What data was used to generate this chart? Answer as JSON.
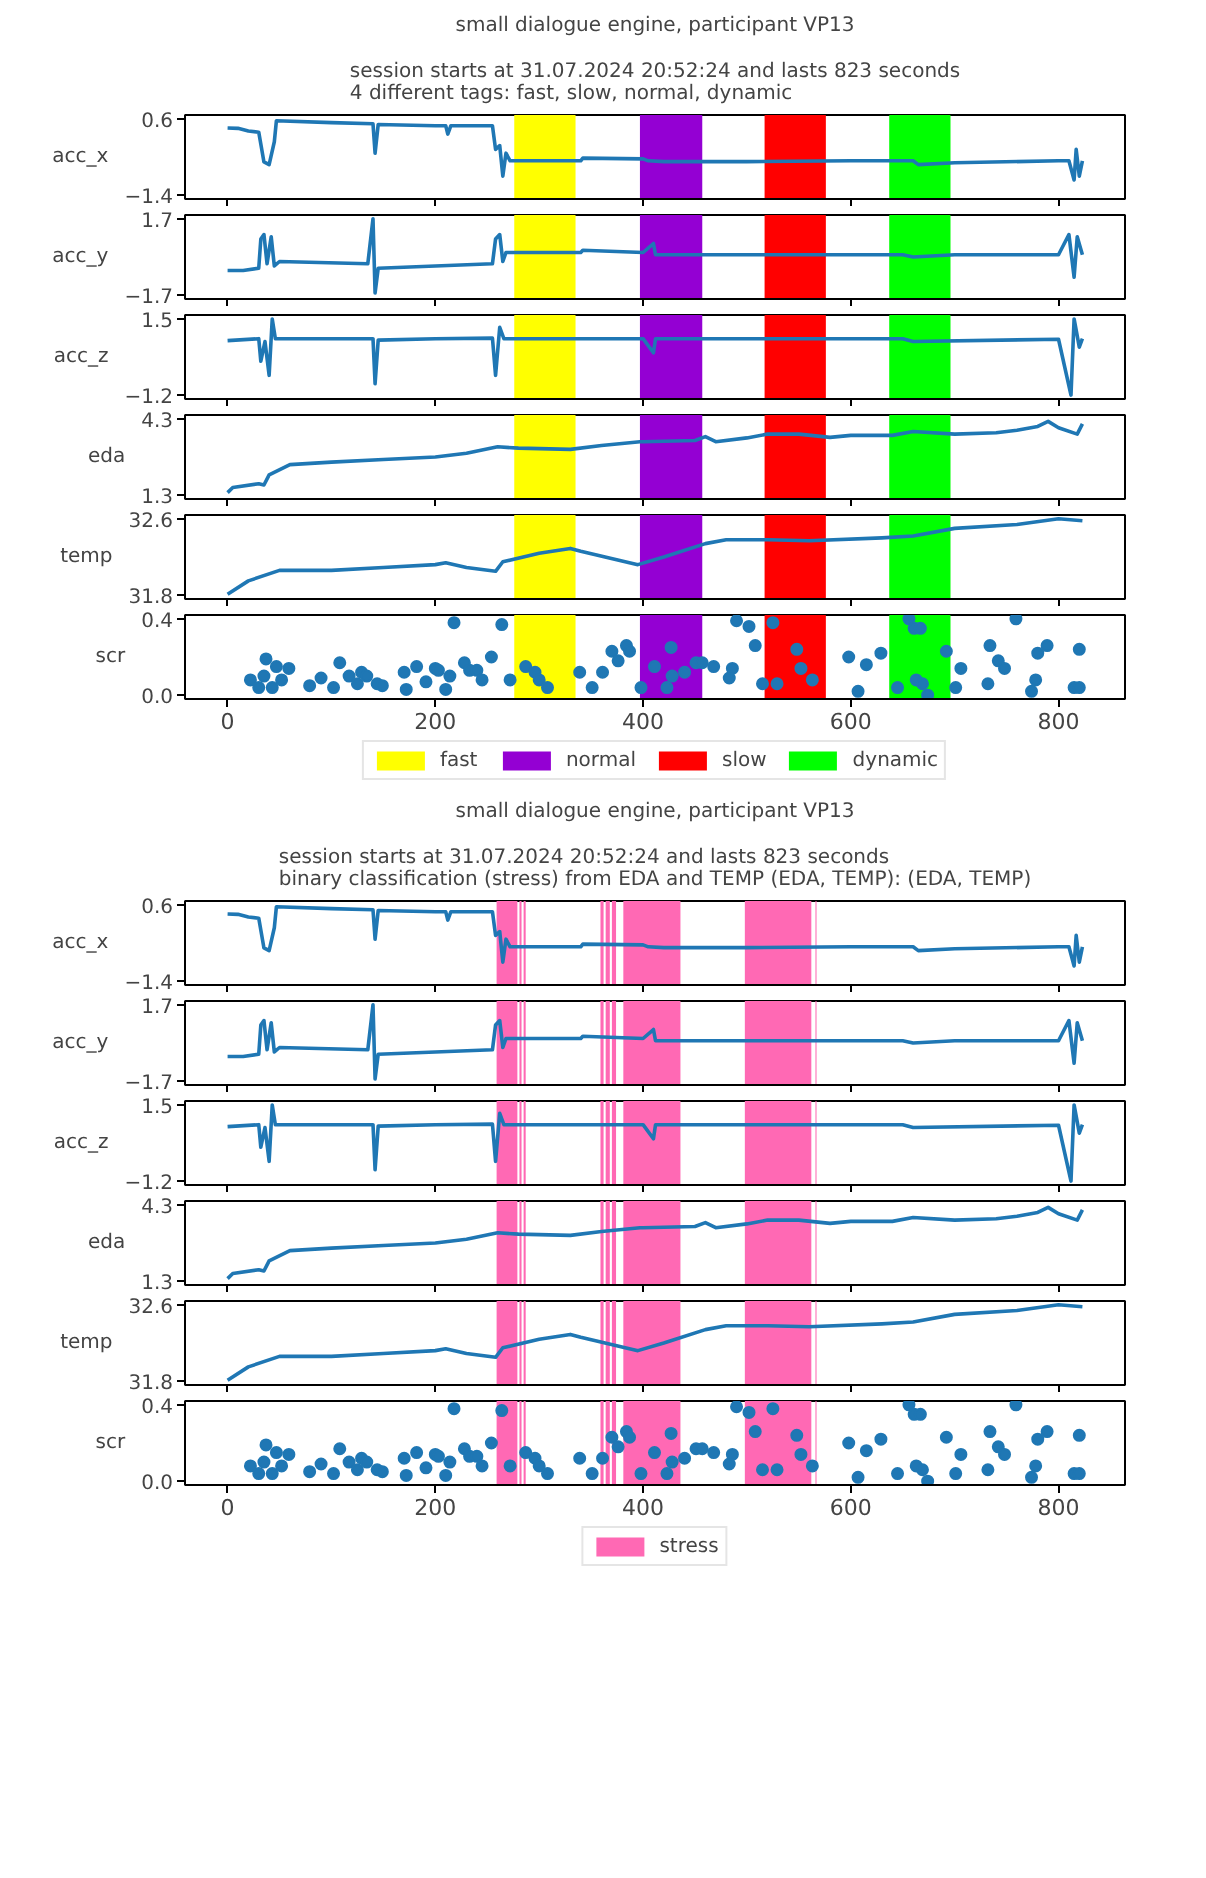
{
  "chart_data": [
    {
      "type": "line",
      "title": "small dialogue engine, participant VP13",
      "subtitle": "session starts at 31.07.2024 20:52:24 and lasts 823 seconds\n4 different tags: fast, slow, normal, dynamic",
      "ylabel": "acc_x",
      "xlim": [
        -41,
        864
      ],
      "ylim": [
        -1.5,
        0.7
      ],
      "xticks": [
        0,
        200,
        400,
        600,
        800
      ],
      "yticks": [
        -1.4,
        0.6
      ],
      "tick_labels": "y",
      "grid": false,
      "x": [
        0,
        10,
        20,
        30,
        35,
        40,
        45,
        47,
        100,
        140,
        142,
        145,
        200,
        210,
        212,
        215,
        255,
        258,
        262,
        265,
        268,
        272,
        280,
        340,
        342,
        400,
        405,
        420,
        500,
        600,
        660,
        665,
        700,
        800,
        810,
        815,
        817,
        820,
        823
      ],
      "series": [
        {
          "color": "#1f77b4",
          "values": [
            0.36,
            0.35,
            0.28,
            0.25,
            -0.53,
            -0.6,
            0.0,
            0.55,
            0.5,
            0.47,
            -0.3,
            0.45,
            0.42,
            0.42,
            0.2,
            0.42,
            0.42,
            -0.2,
            -0.1,
            -0.9,
            -0.3,
            -0.5,
            -0.5,
            -0.5,
            -0.43,
            -0.45,
            -0.5,
            -0.52,
            -0.52,
            -0.5,
            -0.5,
            -0.6,
            -0.55,
            -0.5,
            -0.5,
            -1.0,
            -0.2,
            -0.9,
            -0.5
          ]
        }
      ],
      "bands": [
        {
          "axis": "x",
          "from": 276,
          "to": 335,
          "color": "#ffff00"
        },
        {
          "axis": "x",
          "from": 397,
          "to": 457,
          "color": "#9400d3"
        },
        {
          "axis": "x",
          "from": 517,
          "to": 576,
          "color": "#ff0000"
        },
        {
          "axis": "x",
          "from": 637,
          "to": 696,
          "color": "#00ff00"
        }
      ]
    },
    {
      "type": "line",
      "ylabel": "acc_y",
      "xlim": [
        -41,
        864
      ],
      "ylim": [
        -1.87,
        1.87
      ],
      "xticks": [
        0,
        200,
        400,
        600,
        800
      ],
      "yticks": [
        -1.7,
        1.7
      ],
      "tick_labels": "y",
      "grid": false,
      "x": [
        0,
        15,
        30,
        32,
        35,
        38,
        42,
        45,
        50,
        135,
        140,
        142,
        145,
        200,
        255,
        258,
        262,
        265,
        268,
        340,
        342,
        400,
        410,
        412,
        500,
        650,
        660,
        700,
        800,
        810,
        815,
        818,
        823
      ],
      "series": [
        {
          "color": "#1f77b4",
          "values": [
            -0.6,
            -0.6,
            -0.5,
            0.8,
            1.0,
            -0.3,
            0.9,
            -0.4,
            -0.2,
            -0.3,
            1.7,
            -1.6,
            -0.5,
            -0.4,
            -0.3,
            0.8,
            1.0,
            -0.2,
            0.2,
            0.2,
            0.3,
            0.2,
            0.6,
            0.1,
            0.1,
            0.1,
            0.0,
            0.1,
            0.1,
            1.0,
            -0.9,
            0.9,
            0.1
          ]
        }
      ],
      "bands": [
        {
          "axis": "x",
          "from": 276,
          "to": 335,
          "color": "#ffff00"
        },
        {
          "axis": "x",
          "from": 397,
          "to": 457,
          "color": "#9400d3"
        },
        {
          "axis": "x",
          "from": 517,
          "to": 576,
          "color": "#ff0000"
        },
        {
          "axis": "x",
          "from": 637,
          "to": 696,
          "color": "#00ff00"
        }
      ]
    },
    {
      "type": "line",
      "ylabel": "acc_z",
      "xlim": [
        -41,
        864
      ],
      "ylim": [
        -1.34,
        1.64
      ],
      "xticks": [
        0,
        200,
        400,
        600,
        800
      ],
      "yticks": [
        -1.2,
        1.5
      ],
      "tick_labels": "y",
      "grid": false,
      "x": [
        0,
        30,
        32,
        36,
        40,
        43,
        46,
        140,
        142,
        145,
        200,
        255,
        258,
        262,
        266,
        400,
        410,
        412,
        650,
        660,
        800,
        812,
        815,
        820,
        823
      ],
      "series": [
        {
          "color": "#1f77b4",
          "values": [
            0.73,
            0.8,
            0.0,
            0.7,
            -0.5,
            1.5,
            0.8,
            0.8,
            -0.8,
            0.75,
            0.8,
            0.82,
            -0.5,
            1.2,
            0.8,
            0.8,
            0.3,
            0.8,
            0.8,
            0.7,
            0.78,
            -1.2,
            1.5,
            0.5,
            0.8
          ]
        }
      ],
      "bands": [
        {
          "axis": "x",
          "from": 276,
          "to": 335,
          "color": "#ffff00"
        },
        {
          "axis": "x",
          "from": 397,
          "to": 457,
          "color": "#9400d3"
        },
        {
          "axis": "x",
          "from": 517,
          "to": 576,
          "color": "#ff0000"
        },
        {
          "axis": "x",
          "from": 637,
          "to": 696,
          "color": "#00ff00"
        }
      ]
    },
    {
      "type": "line",
      "ylabel": "eda",
      "xlim": [
        -41,
        864
      ],
      "ylim": [
        1.15,
        4.45
      ],
      "xticks": [
        0,
        200,
        400,
        600,
        800
      ],
      "yticks": [
        1.3,
        4.3
      ],
      "tick_labels": "y",
      "grid": false,
      "x": [
        0,
        5,
        30,
        35,
        40,
        60,
        100,
        150,
        200,
        230,
        260,
        280,
        330,
        360,
        397,
        400,
        450,
        460,
        470,
        500,
        520,
        550,
        580,
        600,
        640,
        660,
        700,
        740,
        760,
        780,
        790,
        800,
        818,
        823
      ],
      "series": [
        {
          "color": "#1f77b4",
          "values": [
            1.4,
            1.6,
            1.75,
            1.7,
            2.1,
            2.5,
            2.6,
            2.7,
            2.8,
            2.95,
            3.2,
            3.15,
            3.1,
            3.25,
            3.4,
            3.4,
            3.45,
            3.6,
            3.4,
            3.55,
            3.7,
            3.7,
            3.57,
            3.65,
            3.65,
            3.8,
            3.7,
            3.75,
            3.85,
            4.0,
            4.2,
            3.95,
            3.7,
            4.1
          ]
        }
      ],
      "bands": [
        {
          "axis": "x",
          "from": 276,
          "to": 335,
          "color": "#ffff00"
        },
        {
          "axis": "x",
          "from": 397,
          "to": 457,
          "color": "#9400d3"
        },
        {
          "axis": "x",
          "from": 517,
          "to": 576,
          "color": "#ff0000"
        },
        {
          "axis": "x",
          "from": 637,
          "to": 696,
          "color": "#00ff00"
        }
      ]
    },
    {
      "type": "line",
      "ylabel": "temp",
      "xlim": [
        -41,
        864
      ],
      "ylim": [
        31.76,
        32.64
      ],
      "xticks": [
        0,
        200,
        400,
        600,
        800
      ],
      "yticks": [
        31.8,
        32.6
      ],
      "tick_labels": "y",
      "grid": false,
      "x": [
        0,
        20,
        50,
        100,
        150,
        200,
        210,
        230,
        258,
        265,
        300,
        330,
        340,
        395,
        420,
        460,
        480,
        520,
        560,
        630,
        660,
        700,
        760,
        800,
        823
      ],
      "series": [
        {
          "color": "#1f77b4",
          "values": [
            31.81,
            31.95,
            32.06,
            32.06,
            32.09,
            32.12,
            32.14,
            32.09,
            32.05,
            32.15,
            32.24,
            32.29,
            32.26,
            32.12,
            32.2,
            32.34,
            32.38,
            32.38,
            32.37,
            32.4,
            32.42,
            32.5,
            32.54,
            32.6,
            32.58
          ]
        }
      ],
      "bands": [
        {
          "axis": "x",
          "from": 276,
          "to": 335,
          "color": "#ffff00"
        },
        {
          "axis": "x",
          "from": 397,
          "to": 457,
          "color": "#9400d3"
        },
        {
          "axis": "x",
          "from": 517,
          "to": 576,
          "color": "#ff0000"
        },
        {
          "axis": "x",
          "from": 637,
          "to": 696,
          "color": "#00ff00"
        }
      ]
    },
    {
      "type": "scatter",
      "marker": "circle",
      "ylabel": "scr",
      "xlim": [
        -41,
        864
      ],
      "ylim": [
        -0.02,
        0.42
      ],
      "xticks": [
        0,
        200,
        400,
        600,
        800
      ],
      "yticks": [
        {
          "value": 0.0,
          "label": "0.0"
        },
        0.4
      ],
      "grid": false,
      "legend": "bottom",
      "x": [
        22,
        30,
        35,
        37,
        43,
        47,
        52,
        59,
        79,
        90,
        102,
        108,
        117,
        125,
        129,
        134,
        144,
        149,
        170,
        172,
        182,
        191,
        200,
        203,
        210,
        214,
        218,
        228,
        233,
        240,
        245,
        254,
        264,
        272,
        287,
        296,
        300,
        308,
        339,
        351,
        361,
        370,
        376,
        384,
        387,
        398,
        411,
        427,
        428,
        423,
        440,
        451,
        457,
        468,
        483,
        486,
        490,
        502,
        508,
        515,
        525,
        529,
        548,
        552,
        563,
        598,
        607,
        615,
        629,
        645,
        656,
        661,
        667,
        663,
        669,
        674,
        692,
        701,
        706,
        732,
        734,
        742,
        748,
        759,
        774,
        778,
        780,
        789,
        815,
        820,
        820
      ],
      "series": [
        {
          "color": "#1f77b4",
          "values": [
            0.08,
            0.04,
            0.1,
            0.19,
            0.04,
            0.15,
            0.08,
            0.14,
            0.05,
            0.09,
            0.04,
            0.17,
            0.1,
            0.06,
            0.12,
            0.1,
            0.06,
            0.05,
            0.12,
            0.03,
            0.15,
            0.07,
            0.14,
            0.13,
            0.03,
            0.1,
            0.38,
            0.17,
            0.13,
            0.13,
            0.08,
            0.2,
            0.37,
            0.08,
            0.15,
            0.12,
            0.08,
            0.04,
            0.12,
            0.04,
            0.12,
            0.23,
            0.18,
            0.26,
            0.23,
            0.04,
            0.15,
            0.25,
            0.1,
            0.04,
            0.12,
            0.17,
            0.17,
            0.15,
            0.09,
            0.14,
            0.39,
            0.36,
            0.26,
            0.06,
            0.38,
            0.06,
            0.24,
            0.14,
            0.08,
            0.2,
            0.02,
            0.16,
            0.22,
            0.04,
            0.4,
            0.35,
            0.35,
            0.08,
            0.06,
            0.0,
            0.23,
            0.04,
            0.14,
            0.06,
            0.26,
            0.18,
            0.14,
            0.4,
            0.02,
            0.08,
            0.22,
            0.26,
            0.04,
            0.04,
            0.24
          ]
        }
      ],
      "bands": [
        {
          "axis": "x",
          "from": 276,
          "to": 335,
          "color": "#ffff00",
          "label": "fast"
        },
        {
          "axis": "x",
          "from": 397,
          "to": 457,
          "color": "#9400d3",
          "label": "normal"
        },
        {
          "axis": "x",
          "from": 517,
          "to": 576,
          "color": "#ff0000",
          "label": "slow"
        },
        {
          "axis": "x",
          "from": 637,
          "to": 696,
          "color": "#00ff00",
          "label": "dynamic"
        }
      ]
    },
    {
      "type": "line",
      "title": "small dialogue engine, participant VP13",
      "subtitle": "session starts at 31.07.2024 20:52:24 and lasts 823 seconds\nbinary classification (stress) from EDA and TEMP (EDA, TEMP): (EDA, TEMP)",
      "ylabel": "acc_x",
      "xlim": [
        -41,
        864
      ],
      "ylim": [
        -1.5,
        0.7
      ],
      "xticks": [
        0,
        200,
        400,
        600,
        800
      ],
      "yticks": [
        -1.4,
        0.6
      ],
      "tick_labels": "y",
      "grid": false,
      "x": [
        0,
        10,
        20,
        30,
        35,
        40,
        45,
        47,
        100,
        140,
        142,
        145,
        200,
        210,
        212,
        215,
        255,
        258,
        262,
        265,
        268,
        272,
        280,
        340,
        342,
        400,
        405,
        420,
        500,
        600,
        660,
        665,
        700,
        800,
        810,
        815,
        817,
        820,
        823
      ],
      "series": [
        {
          "color": "#1f77b4",
          "values": [
            0.36,
            0.35,
            0.28,
            0.25,
            -0.53,
            -0.6,
            0.0,
            0.55,
            0.5,
            0.47,
            -0.3,
            0.45,
            0.42,
            0.42,
            0.2,
            0.42,
            0.42,
            -0.2,
            -0.1,
            -0.9,
            -0.3,
            -0.5,
            -0.5,
            -0.5,
            -0.43,
            -0.45,
            -0.5,
            -0.52,
            -0.52,
            -0.5,
            -0.5,
            -0.6,
            -0.55,
            -0.5,
            -0.5,
            -1.0,
            -0.2,
            -0.9,
            -0.5
          ]
        }
      ],
      "bands": [
        {
          "axis": "x",
          "from": 259,
          "to": 279,
          "color": "#ff69b4"
        },
        {
          "axis": "x",
          "from": 281,
          "to": 283,
          "color": "#ff69b4"
        },
        {
          "axis": "x",
          "from": 285,
          "to": 287,
          "color": "#ff69b4"
        },
        {
          "axis": "x",
          "from": 359,
          "to": 362,
          "color": "#ff69b4"
        },
        {
          "axis": "x",
          "from": 364,
          "to": 368,
          "color": "#ff69b4"
        },
        {
          "axis": "x",
          "from": 370,
          "to": 374,
          "color": "#ff69b4"
        },
        {
          "axis": "x",
          "from": 381,
          "to": 436,
          "color": "#ff69b4"
        },
        {
          "axis": "x",
          "from": 498,
          "to": 562,
          "color": "#ff69b4"
        },
        {
          "axis": "x",
          "from": 566,
          "to": 567,
          "color": "#ff69b4"
        }
      ]
    },
    {
      "type": "line",
      "ylabel": "acc_y",
      "xlim": [
        -41,
        864
      ],
      "ylim": [
        -1.87,
        1.87
      ],
      "xticks": [
        0,
        200,
        400,
        600,
        800
      ],
      "yticks": [
        -1.7,
        1.7
      ],
      "tick_labels": "y",
      "grid": false,
      "x": [
        0,
        15,
        30,
        32,
        35,
        38,
        42,
        45,
        50,
        135,
        140,
        142,
        145,
        200,
        255,
        258,
        262,
        265,
        268,
        340,
        342,
        400,
        410,
        412,
        500,
        650,
        660,
        700,
        800,
        810,
        815,
        818,
        823
      ],
      "series": [
        {
          "color": "#1f77b4",
          "values": [
            -0.6,
            -0.6,
            -0.5,
            0.8,
            1.0,
            -0.3,
            0.9,
            -0.4,
            -0.2,
            -0.3,
            1.7,
            -1.6,
            -0.5,
            -0.4,
            -0.3,
            0.8,
            1.0,
            -0.2,
            0.2,
            0.2,
            0.3,
            0.2,
            0.6,
            0.1,
            0.1,
            0.1,
            0.0,
            0.1,
            0.1,
            1.0,
            -0.9,
            0.9,
            0.1
          ]
        }
      ],
      "bands": [
        {
          "axis": "x",
          "from": 259,
          "to": 279,
          "color": "#ff69b4"
        },
        {
          "axis": "x",
          "from": 281,
          "to": 283,
          "color": "#ff69b4"
        },
        {
          "axis": "x",
          "from": 285,
          "to": 287,
          "color": "#ff69b4"
        },
        {
          "axis": "x",
          "from": 359,
          "to": 362,
          "color": "#ff69b4"
        },
        {
          "axis": "x",
          "from": 364,
          "to": 368,
          "color": "#ff69b4"
        },
        {
          "axis": "x",
          "from": 370,
          "to": 374,
          "color": "#ff69b4"
        },
        {
          "axis": "x",
          "from": 381,
          "to": 436,
          "color": "#ff69b4"
        },
        {
          "axis": "x",
          "from": 498,
          "to": 562,
          "color": "#ff69b4"
        },
        {
          "axis": "x",
          "from": 566,
          "to": 567,
          "color": "#ff69b4"
        }
      ]
    },
    {
      "type": "line",
      "ylabel": "acc_z",
      "xlim": [
        -41,
        864
      ],
      "ylim": [
        -1.34,
        1.64
      ],
      "xticks": [
        0,
        200,
        400,
        600,
        800
      ],
      "yticks": [
        -1.2,
        1.5
      ],
      "tick_labels": "y",
      "grid": false,
      "x": [
        0,
        30,
        32,
        36,
        40,
        43,
        46,
        140,
        142,
        145,
        200,
        255,
        258,
        262,
        266,
        400,
        410,
        412,
        650,
        660,
        800,
        812,
        815,
        820,
        823
      ],
      "series": [
        {
          "color": "#1f77b4",
          "values": [
            0.73,
            0.8,
            0.0,
            0.7,
            -0.5,
            1.5,
            0.8,
            0.8,
            -0.8,
            0.75,
            0.8,
            0.82,
            -0.5,
            1.2,
            0.8,
            0.8,
            0.3,
            0.8,
            0.8,
            0.7,
            0.78,
            -1.2,
            1.5,
            0.5,
            0.8
          ]
        }
      ],
      "bands": [
        {
          "axis": "x",
          "from": 259,
          "to": 279,
          "color": "#ff69b4"
        },
        {
          "axis": "x",
          "from": 281,
          "to": 283,
          "color": "#ff69b4"
        },
        {
          "axis": "x",
          "from": 285,
          "to": 287,
          "color": "#ff69b4"
        },
        {
          "axis": "x",
          "from": 359,
          "to": 362,
          "color": "#ff69b4"
        },
        {
          "axis": "x",
          "from": 364,
          "to": 368,
          "color": "#ff69b4"
        },
        {
          "axis": "x",
          "from": 370,
          "to": 374,
          "color": "#ff69b4"
        },
        {
          "axis": "x",
          "from": 381,
          "to": 436,
          "color": "#ff69b4"
        },
        {
          "axis": "x",
          "from": 498,
          "to": 562,
          "color": "#ff69b4"
        },
        {
          "axis": "x",
          "from": 566,
          "to": 567,
          "color": "#ff69b4"
        }
      ]
    },
    {
      "type": "line",
      "ylabel": "eda",
      "xlim": [
        -41,
        864
      ],
      "ylim": [
        1.15,
        4.45
      ],
      "xticks": [
        0,
        200,
        400,
        600,
        800
      ],
      "yticks": [
        1.3,
        4.3
      ],
      "tick_labels": "y",
      "grid": false,
      "x": [
        0,
        5,
        30,
        35,
        40,
        60,
        100,
        150,
        200,
        230,
        260,
        280,
        330,
        360,
        397,
        400,
        450,
        460,
        470,
        500,
        520,
        550,
        580,
        600,
        640,
        660,
        700,
        740,
        760,
        780,
        790,
        800,
        818,
        823
      ],
      "series": [
        {
          "color": "#1f77b4",
          "values": [
            1.4,
            1.6,
            1.75,
            1.7,
            2.1,
            2.5,
            2.6,
            2.7,
            2.8,
            2.95,
            3.2,
            3.15,
            3.1,
            3.25,
            3.4,
            3.4,
            3.45,
            3.6,
            3.4,
            3.55,
            3.7,
            3.7,
            3.57,
            3.65,
            3.65,
            3.8,
            3.7,
            3.75,
            3.85,
            4.0,
            4.2,
            3.95,
            3.7,
            4.1
          ]
        }
      ],
      "bands": [
        {
          "axis": "x",
          "from": 259,
          "to": 279,
          "color": "#ff69b4"
        },
        {
          "axis": "x",
          "from": 281,
          "to": 283,
          "color": "#ff69b4"
        },
        {
          "axis": "x",
          "from": 285,
          "to": 287,
          "color": "#ff69b4"
        },
        {
          "axis": "x",
          "from": 359,
          "to": 362,
          "color": "#ff69b4"
        },
        {
          "axis": "x",
          "from": 364,
          "to": 368,
          "color": "#ff69b4"
        },
        {
          "axis": "x",
          "from": 370,
          "to": 374,
          "color": "#ff69b4"
        },
        {
          "axis": "x",
          "from": 381,
          "to": 436,
          "color": "#ff69b4"
        },
        {
          "axis": "x",
          "from": 498,
          "to": 562,
          "color": "#ff69b4"
        },
        {
          "axis": "x",
          "from": 566,
          "to": 567,
          "color": "#ff69b4"
        }
      ]
    },
    {
      "type": "line",
      "ylabel": "temp",
      "xlim": [
        -41,
        864
      ],
      "ylim": [
        31.76,
        32.64
      ],
      "xticks": [
        0,
        200,
        400,
        600,
        800
      ],
      "yticks": [
        31.8,
        32.6
      ],
      "tick_labels": "y",
      "grid": false,
      "x": [
        0,
        20,
        50,
        100,
        150,
        200,
        210,
        230,
        258,
        265,
        300,
        330,
        340,
        395,
        420,
        460,
        480,
        520,
        560,
        630,
        660,
        700,
        760,
        800,
        823
      ],
      "series": [
        {
          "color": "#1f77b4",
          "values": [
            31.81,
            31.95,
            32.06,
            32.06,
            32.09,
            32.12,
            32.14,
            32.09,
            32.05,
            32.15,
            32.24,
            32.29,
            32.26,
            32.12,
            32.2,
            32.34,
            32.38,
            32.38,
            32.37,
            32.4,
            32.42,
            32.5,
            32.54,
            32.6,
            32.58
          ]
        }
      ],
      "bands": [
        {
          "axis": "x",
          "from": 259,
          "to": 279,
          "color": "#ff69b4"
        },
        {
          "axis": "x",
          "from": 281,
          "to": 283,
          "color": "#ff69b4"
        },
        {
          "axis": "x",
          "from": 285,
          "to": 287,
          "color": "#ff69b4"
        },
        {
          "axis": "x",
          "from": 359,
          "to": 362,
          "color": "#ff69b4"
        },
        {
          "axis": "x",
          "from": 364,
          "to": 368,
          "color": "#ff69b4"
        },
        {
          "axis": "x",
          "from": 370,
          "to": 374,
          "color": "#ff69b4"
        },
        {
          "axis": "x",
          "from": 381,
          "to": 436,
          "color": "#ff69b4"
        },
        {
          "axis": "x",
          "from": 498,
          "to": 562,
          "color": "#ff69b4"
        },
        {
          "axis": "x",
          "from": 566,
          "to": 567,
          "color": "#ff69b4"
        }
      ]
    },
    {
      "type": "scatter",
      "marker": "circle",
      "ylabel": "scr",
      "xlim": [
        -41,
        864
      ],
      "ylim": [
        -0.02,
        0.42
      ],
      "xticks": [
        0,
        200,
        400,
        600,
        800
      ],
      "yticks": [
        {
          "value": 0.0,
          "label": "0.0"
        },
        0.4
      ],
      "grid": false,
      "legend": "bottom",
      "x": [
        22,
        30,
        35,
        37,
        43,
        47,
        52,
        59,
        79,
        90,
        102,
        108,
        117,
        125,
        129,
        134,
        144,
        149,
        170,
        172,
        182,
        191,
        200,
        203,
        210,
        214,
        218,
        228,
        233,
        240,
        245,
        254,
        264,
        272,
        287,
        296,
        300,
        308,
        339,
        351,
        361,
        370,
        376,
        384,
        387,
        398,
        411,
        427,
        428,
        423,
        440,
        451,
        457,
        468,
        483,
        486,
        490,
        502,
        508,
        515,
        525,
        529,
        548,
        552,
        563,
        598,
        607,
        615,
        629,
        645,
        656,
        661,
        667,
        663,
        669,
        674,
        692,
        701,
        706,
        732,
        734,
        742,
        748,
        759,
        774,
        778,
        780,
        789,
        815,
        820,
        820
      ],
      "series": [
        {
          "color": "#1f77b4",
          "values": [
            0.08,
            0.04,
            0.1,
            0.19,
            0.04,
            0.15,
            0.08,
            0.14,
            0.05,
            0.09,
            0.04,
            0.17,
            0.1,
            0.06,
            0.12,
            0.1,
            0.06,
            0.05,
            0.12,
            0.03,
            0.15,
            0.07,
            0.14,
            0.13,
            0.03,
            0.1,
            0.38,
            0.17,
            0.13,
            0.13,
            0.08,
            0.2,
            0.37,
            0.08,
            0.15,
            0.12,
            0.08,
            0.04,
            0.12,
            0.04,
            0.12,
            0.23,
            0.18,
            0.26,
            0.23,
            0.04,
            0.15,
            0.25,
            0.1,
            0.04,
            0.12,
            0.17,
            0.17,
            0.15,
            0.09,
            0.14,
            0.39,
            0.36,
            0.26,
            0.06,
            0.38,
            0.06,
            0.24,
            0.14,
            0.08,
            0.2,
            0.02,
            0.16,
            0.22,
            0.04,
            0.4,
            0.35,
            0.35,
            0.08,
            0.06,
            0.0,
            0.23,
            0.04,
            0.14,
            0.06,
            0.26,
            0.18,
            0.14,
            0.4,
            0.02,
            0.08,
            0.22,
            0.26,
            0.04,
            0.04,
            0.24
          ]
        }
      ],
      "bands": [
        {
          "axis": "x",
          "from": 259,
          "to": 279,
          "color": "#ff69b4",
          "label": "stress"
        },
        {
          "axis": "x",
          "from": 281,
          "to": 283,
          "color": "#ff69b4"
        },
        {
          "axis": "x",
          "from": 285,
          "to": 287,
          "color": "#ff69b4"
        },
        {
          "axis": "x",
          "from": 359,
          "to": 362,
          "color": "#ff69b4"
        },
        {
          "axis": "x",
          "from": 364,
          "to": 368,
          "color": "#ff69b4"
        },
        {
          "axis": "x",
          "from": 370,
          "to": 374,
          "color": "#ff69b4"
        },
        {
          "axis": "x",
          "from": 381,
          "to": 436,
          "color": "#ff69b4"
        },
        {
          "axis": "x",
          "from": 498,
          "to": 562,
          "color": "#ff69b4"
        },
        {
          "axis": "x",
          "from": 566,
          "to": 567,
          "color": "#ff69b4"
        }
      ]
    }
  ]
}
